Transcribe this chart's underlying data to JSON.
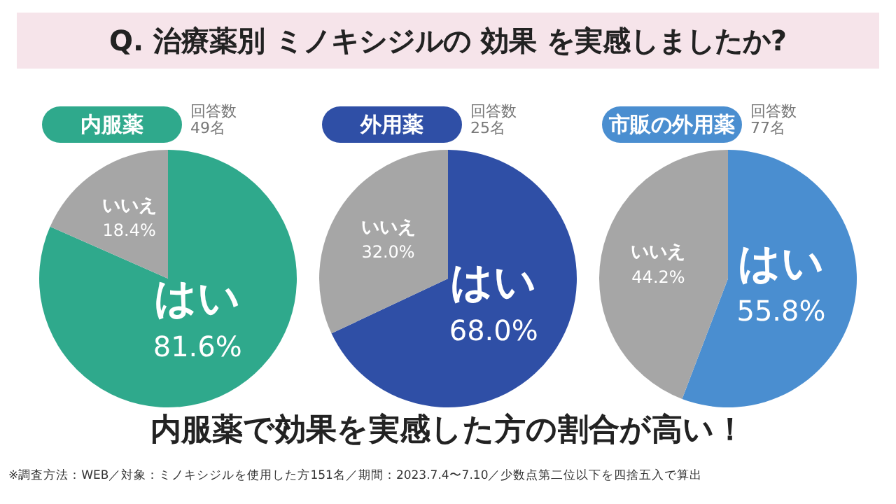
{
  "chart_data": [
    {
      "type": "pie",
      "title": "内服薬",
      "subtitle": "回答数\n49名",
      "categories": [
        "はい",
        "いいえ"
      ],
      "values": [
        81.6,
        18.4
      ],
      "colors": [
        "#2fa98c",
        "#a6a6a6"
      ],
      "data_labels": true,
      "value_labels": [
        "81.6%",
        "18.4%"
      ],
      "annotations": [
        "Q. 治療薬別 ミノキシジルの 効果 を実感しましたか?",
        "内服薬で効果を実感した方の割合が高い！",
        "※調査方法：WEB／対象：ミノキシジルを使用した方151名／期間：2023.7.4〜7.10／少数点第二位以下を四捨五入で算出"
      ]
    },
    {
      "type": "pie",
      "title": "外用薬",
      "subtitle": "回答数\n25名",
      "categories": [
        "はい",
        "いいえ"
      ],
      "values": [
        68.0,
        32.0
      ],
      "colors": [
        "#2f4fa6",
        "#a6a6a6"
      ],
      "data_labels": true,
      "value_labels": [
        "68.0%",
        "32.0%"
      ]
    },
    {
      "type": "pie",
      "title": "市販の外用薬",
      "subtitle": "回答数\n77名",
      "categories": [
        "はい",
        "いいえ"
      ],
      "values": [
        55.8,
        44.2
      ],
      "colors": [
        "#4a8ed0",
        "#a6a6a6"
      ],
      "data_labels": true,
      "value_labels": [
        "55.8%",
        "44.2%"
      ]
    }
  ]
}
